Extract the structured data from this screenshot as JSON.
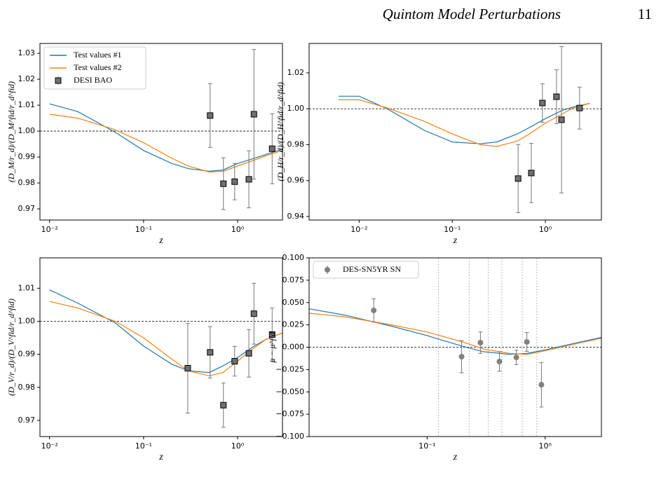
{
  "header": {
    "title": "Quintom Model Perturbations",
    "page": "11"
  },
  "chart_data": [
    {
      "type": "line",
      "xlabel": "z",
      "ylabel": "(D_M/r_d)/(D_M^fid/r_d^fid)",
      "xlog": true,
      "xlim": [
        0.0079,
        3.0
      ],
      "ylim": [
        0.9657,
        1.0338
      ],
      "xticks": [
        {
          "value": 0.01,
          "label": "10⁻²"
        },
        {
          "value": 0.1,
          "label": "10⁻¹"
        },
        {
          "value": 1,
          "label": "10⁰"
        }
      ],
      "yticks": [
        0.97,
        0.98,
        0.99,
        {
          "value": 1,
          "label": "1.00"
        },
        1.01,
        1.02,
        1.03
      ],
      "hline": 1,
      "legend": "upper left",
      "series": [
        {
          "name": "Test values #1",
          "color": "#1f77b4",
          "x": [
            0.01,
            0.02,
            0.05,
            0.1,
            0.2,
            0.3,
            0.5,
            0.7,
            1,
            1.5,
            2,
            3
          ],
          "values": [
            1.0105,
            1.0075,
            0.9995,
            0.9925,
            0.9875,
            0.9855,
            0.9845,
            0.985,
            0.9875,
            0.9895,
            0.991,
            0.993
          ]
        },
        {
          "name": "Test values #2",
          "color": "#ff7f0e",
          "x": [
            0.01,
            0.02,
            0.05,
            0.1,
            0.2,
            0.3,
            0.5,
            0.7,
            1,
            1.5,
            2,
            3
          ],
          "values": [
            1.0065,
            1.005,
            1.0005,
            0.9955,
            0.9895,
            0.9865,
            0.9842,
            0.9845,
            0.9865,
            0.9888,
            0.9905,
            0.9925
          ]
        },
        {
          "name": "DESI BAO",
          "color": "#707070",
          "marker": "square",
          "x": [
            0.51,
            0.706,
            0.93,
            1.317,
            1.491,
            2.33
          ],
          "values": [
            1.006,
            0.9797,
            0.9805,
            0.9814,
            1.0065,
            0.9932
          ],
          "errors": [
            0.0123,
            0.01,
            0.007,
            0.011,
            0.025,
            0.0135
          ]
        }
      ]
    },
    {
      "type": "line",
      "xlabel": "z",
      "ylabel": "(D_H/r_d)/(D_H^fid/r_d^fid)",
      "xlog": true,
      "xlim": [
        0.0029,
        4.0
      ],
      "ylim": [
        0.938,
        1.0364
      ],
      "xticks": [
        {
          "value": 0.01,
          "label": "10⁻²"
        },
        {
          "value": 0.1,
          "label": "10⁻¹"
        },
        {
          "value": 1,
          "label": "10⁰"
        }
      ],
      "yticks": [
        0.94,
        0.96,
        0.98,
        {
          "value": 1,
          "label": "1.00"
        },
        1.02
      ],
      "hline": 1,
      "series": [
        {
          "color": "#1f77b4",
          "x": [
            0.006,
            0.01,
            0.02,
            0.05,
            0.1,
            0.2,
            0.3,
            0.5,
            0.7,
            1,
            1.5,
            2,
            3
          ],
          "values": [
            1.007,
            1.007,
            1.0,
            0.988,
            0.9815,
            0.9805,
            0.9815,
            0.986,
            0.99,
            0.9945,
            0.999,
            1.001,
            1.003
          ]
        },
        {
          "color": "#ff7f0e",
          "x": [
            0.006,
            0.01,
            0.02,
            0.05,
            0.1,
            0.2,
            0.3,
            0.5,
            0.7,
            1,
            1.5,
            2,
            3
          ],
          "values": [
            1.005,
            1.005,
            1.0005,
            0.993,
            0.986,
            0.98,
            0.979,
            0.982,
            0.9865,
            0.992,
            0.997,
            1.0005,
            1.003
          ]
        },
        {
          "color": "#707070",
          "marker": "square",
          "x": [
            0.51,
            0.706,
            0.93,
            1.317,
            1.491,
            2.33
          ],
          "values": [
            0.9611,
            0.9642,
            1.0032,
            1.0067,
            0.9939,
            1.0004
          ],
          "errors": [
            0.019,
            0.0165,
            0.0107,
            0.015,
            0.0408,
            0.0117
          ]
        }
      ]
    },
    {
      "type": "line",
      "xlabel": "z",
      "ylabel": "(D_V/r_d)/(D_V^fid/r_d^fid)",
      "xlog": true,
      "xlim": [
        0.0079,
        3.0
      ],
      "ylim": [
        0.9651,
        1.0192
      ],
      "xticks": [
        {
          "value": 0.01,
          "label": "10⁻²"
        },
        {
          "value": 0.1,
          "label": "10⁻¹"
        },
        {
          "value": 1,
          "label": "10⁰"
        }
      ],
      "yticks": [
        0.97,
        0.98,
        0.99,
        {
          "value": 1,
          "label": "1.00"
        },
        1.01
      ],
      "hline": 1,
      "series": [
        {
          "color": "#1f77b4",
          "x": [
            0.01,
            0.02,
            0.05,
            0.1,
            0.2,
            0.3,
            0.5,
            0.7,
            1,
            1.5,
            2,
            3
          ],
          "values": [
            1.0095,
            1.0055,
            0.9995,
            0.9925,
            0.987,
            0.985,
            0.9845,
            0.9865,
            0.989,
            0.9925,
            0.9945,
            0.9965
          ]
        },
        {
          "color": "#ff7f0e",
          "x": [
            0.01,
            0.02,
            0.05,
            0.1,
            0.2,
            0.3,
            0.5,
            0.7,
            1,
            1.5,
            2,
            3
          ],
          "values": [
            1.006,
            1.004,
            1.0,
            0.995,
            0.9885,
            0.985,
            0.9835,
            0.9845,
            0.988,
            0.992,
            0.9945,
            0.9965
          ]
        },
        {
          "color": "#707070",
          "marker": "square",
          "x": [
            0.295,
            0.51,
            0.706,
            0.93,
            1.317,
            1.491,
            2.33
          ],
          "values": [
            0.9858,
            0.9906,
            0.9746,
            0.9879,
            0.9903,
            1.0023,
            0.996
          ],
          "errors": [
            0.0136,
            0.0078,
            0.0067,
            0.0045,
            0.0072,
            0.0092,
            0.008
          ]
        }
      ]
    },
    {
      "type": "line",
      "xlabel": "z",
      "ylabel": "μ − μ^fid",
      "xlog": true,
      "xlim": [
        0.01,
        3.0
      ],
      "ylim": [
        -0.1,
        0.1
      ],
      "xticks": [
        {
          "value": 0.1,
          "label": "10⁻¹"
        },
        {
          "value": 1,
          "label": "10⁰"
        }
      ],
      "yticks": [
        {
          "value": -0.1,
          "label": "−0.100"
        },
        {
          "value": -0.075,
          "label": "−0.075"
        },
        {
          "value": -0.05,
          "label": "−0.050"
        },
        {
          "value": -0.025,
          "label": "−0.025"
        },
        {
          "value": 0,
          "label": "0.000"
        },
        {
          "value": 0.025,
          "label": "0.025"
        },
        {
          "value": 0.05,
          "label": "0.050"
        },
        {
          "value": 0.075,
          "label": "0.075"
        },
        {
          "value": 0.1,
          "label": "0.100"
        }
      ],
      "hline": 0,
      "vlines": [
        0.125,
        0.227,
        0.33,
        0.43,
        0.64,
        0.85
      ],
      "legend": "upper left",
      "series": [
        {
          "color": "#1f77b4",
          "x": [
            0.01,
            0.02,
            0.05,
            0.1,
            0.2,
            0.3,
            0.5,
            0.7,
            1,
            2,
            3
          ],
          "values": [
            0.043,
            0.036,
            0.0235,
            0.013,
            0.001,
            -0.005,
            -0.008,
            -0.007,
            -0.003,
            0.006,
            0.011
          ]
        },
        {
          "color": "#ff7f0e",
          "x": [
            0.01,
            0.02,
            0.05,
            0.1,
            0.2,
            0.3,
            0.5,
            0.7,
            1,
            2,
            3
          ],
          "values": [
            0.038,
            0.034,
            0.025,
            0.017,
            0.006,
            -0.002,
            -0.007,
            -0.008,
            -0.004,
            0.005,
            0.01
          ]
        },
        {
          "name": "DES-SN5YR SN",
          "color": "#808080",
          "marker": "circle",
          "x": [
            0.0353,
            0.196,
            0.283,
            0.41,
            0.57,
            0.7,
            0.93
          ],
          "values": [
            0.0412,
            -0.0106,
            0.0051,
            -0.016,
            -0.0114,
            0.0059,
            -0.042
          ],
          "errors": [
            0.013,
            0.018,
            0.012,
            0.011,
            0.008,
            0.0105,
            0.025
          ]
        }
      ]
    }
  ]
}
